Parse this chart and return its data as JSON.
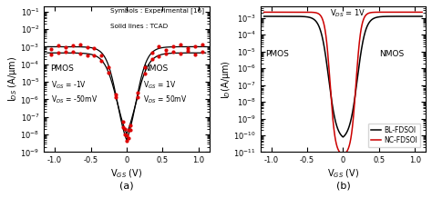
{
  "panel_a": {
    "xlabel": "V$_{GS}$ (V)",
    "ylabel": "I$_{DS}$ (A/μm)",
    "xlim": [
      -1.15,
      1.15
    ],
    "ylim": [
      1e-09,
      0.2
    ],
    "annotation1": "Symbols : Experimental [16]",
    "annotation2": "Solid lines : TCAD",
    "pmos_label": "PMOS",
    "pmos_vgs": "V$_{GS}$ = -1V",
    "pmos_vds": "V$_{DS}$ = -50mV",
    "nmos_label": "NMOS",
    "nmos_vgs": "V$_{GS}$ = 1V",
    "nmos_vds": "V$_{DS}$ = 50mV",
    "caption": "(a)",
    "curve1_imax": -3.0,
    "curve1_imin": -9.3,
    "curve1_vt": 0.13,
    "curve1_slope": 13.0,
    "curve2_imax": -3.35,
    "curve2_imin": -9.0,
    "curve2_vt": 0.13,
    "curve2_slope": 11.5
  },
  "panel_b": {
    "xlabel": "V$_{GS}$ (V)",
    "ylabel": "I$_D$(A/μm)",
    "xlim": [
      -1.15,
      1.15
    ],
    "ylim": [
      1e-11,
      0.005
    ],
    "vds_label": "V$_{DS}$ = 1V",
    "pmos_label": "PMOS",
    "nmos_label": "NMOS",
    "legend_bl": "BL-FDSOI",
    "legend_nc": "NC-FDSOI",
    "caption": "(b)",
    "bl_imax": -2.9,
    "bl_imin": -10.3,
    "bl_vt": 0.2,
    "bl_slope": 18.0,
    "nc_imax": -2.65,
    "nc_imin": -11.2,
    "nc_vt": 0.18,
    "nc_slope": 28.0
  },
  "line_color_black": "#000000",
  "line_color_red": "#cc0000",
  "dot_color": "#dd0000"
}
